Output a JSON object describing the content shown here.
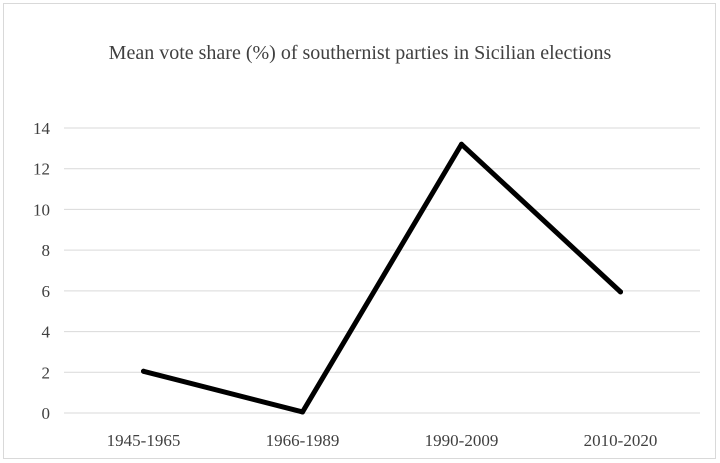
{
  "chart_data": {
    "type": "line",
    "title": "Mean vote share (%) of southernist parties in Sicilian elections",
    "categories": [
      "1945-1965",
      "1966-1989",
      "1990-2009",
      "2010-2020"
    ],
    "series": [
      {
        "values": [
          2.05,
          0.05,
          13.2,
          5.95
        ]
      }
    ],
    "xlabel": "",
    "ylabel": "",
    "ylim": [
      0,
      14
    ],
    "yticks": [
      0,
      2,
      4,
      6,
      8,
      10,
      12,
      14
    ],
    "grid": true,
    "line_color": "#000000",
    "grid_color": "#d9d9d9",
    "text_color": "#404040"
  }
}
